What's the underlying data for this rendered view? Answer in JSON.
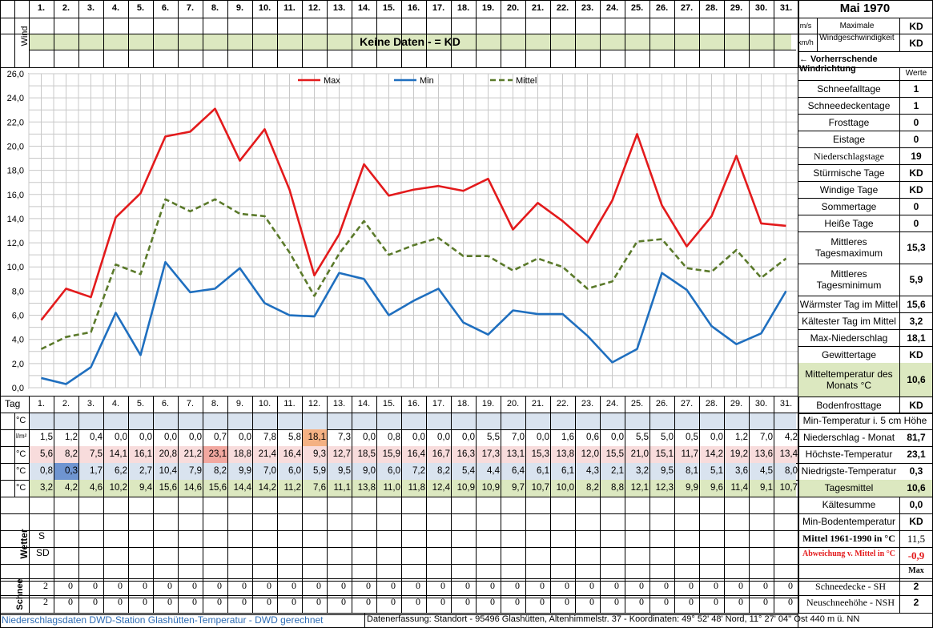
{
  "title": "Mai 1970",
  "days": [
    "1.",
    "2.",
    "3.",
    "4.",
    "5.",
    "6.",
    "7.",
    "8.",
    "9.",
    "10.",
    "11.",
    "12.",
    "13.",
    "14.",
    "15.",
    "16.",
    "17.",
    "18.",
    "19.",
    "20.",
    "21.",
    "22.",
    "23.",
    "24.",
    "25.",
    "26.",
    "27.",
    "28.",
    "29.",
    "30.",
    "31."
  ],
  "wind": {
    "label": "Wind",
    "unit_ms": "m/s",
    "unit_kmh": "km/h",
    "max_label": "Maximale Windgeschwindigkeit",
    "max_ms": "KD",
    "max_kmh": "KD",
    "no_data_banner": "Keine Daten -  = KD",
    "direction_label": "← Vorherrschende Windrichtung"
  },
  "werte_label": "Werte",
  "stats": [
    {
      "label": "Schneefalltage",
      "value": "1"
    },
    {
      "label": "Schneedeckentage",
      "value": "1"
    },
    {
      "label": "Frosttage",
      "value": "0"
    },
    {
      "label": "Eistage",
      "value": "0"
    },
    {
      "label": "Niederschlagstage",
      "value": "19"
    },
    {
      "label": "Stürmische Tage",
      "value": "KD"
    },
    {
      "label": "Windige Tage",
      "value": "KD"
    },
    {
      "label": "Sommertage",
      "value": "0"
    },
    {
      "label": "Heiße Tage",
      "value": "0"
    },
    {
      "label": "Mittleres Tagesmaximum",
      "value": "15,3"
    },
    {
      "label": "Mittleres Tagesminimum",
      "value": "5,9"
    },
    {
      "label": "Wärmster Tag im Mittel",
      "value": "15,6"
    },
    {
      "label": "Kältester Tag im Mittel",
      "value": "3,2"
    },
    {
      "label": "Max-Niederschlag",
      "value": "18,1"
    },
    {
      "label": "Gewittertage",
      "value": "KD"
    },
    {
      "label": "Mitteltemperatur des Monats °C",
      "value": "10,6"
    },
    {
      "label": "Bodenfrosttage",
      "value": "KD"
    }
  ],
  "table": {
    "tag_label": "Tag",
    "unit_c": "°C",
    "unit_lm2": "l/m²",
    "rows": [
      {
        "label": "Min-Temperatur i. 5 cm Höhe",
        "summary": "",
        "values": [
          "",
          "",
          "",
          "",
          "",
          "",
          "",
          "",
          "",
          "",
          "",
          "",
          "",
          "",
          "",
          "",
          "",
          "",
          "",
          "",
          "",
          "",
          "",
          "",
          "",
          "",
          "",
          "",
          "",
          "",
          ""
        ]
      },
      {
        "label": "Niederschlag - Monat",
        "summary": "81,7",
        "values": [
          "1,5",
          "1,2",
          "0,4",
          "0,0",
          "0,0",
          "0,0",
          "0,0",
          "0,7",
          "0,0",
          "7,8",
          "5,8",
          "18,1",
          "7,3",
          "0,0",
          "0,8",
          "0,0",
          "0,0",
          "0,0",
          "5,5",
          "7,0",
          "0,0",
          "1,6",
          "0,6",
          "0,0",
          "5,5",
          "5,0",
          "0,5",
          "0,0",
          "1,2",
          "7,0",
          "4,2"
        ]
      },
      {
        "label": "Höchste-Temperatur",
        "summary": "23,1",
        "values": [
          "5,6",
          "8,2",
          "7,5",
          "14,1",
          "16,1",
          "20,8",
          "21,2",
          "23,1",
          "18,8",
          "21,4",
          "16,4",
          "9,3",
          "12,7",
          "18,5",
          "15,9",
          "16,4",
          "16,7",
          "16,3",
          "17,3",
          "13,1",
          "15,3",
          "13,8",
          "12,0",
          "15,5",
          "21,0",
          "15,1",
          "11,7",
          "14,2",
          "19,2",
          "13,6",
          "13,4"
        ]
      },
      {
        "label": "Niedrigste-Temperatur",
        "summary": "0,3",
        "values": [
          "0,8",
          "0,3",
          "1,7",
          "6,2",
          "2,7",
          "10,4",
          "7,9",
          "8,2",
          "9,9",
          "7,0",
          "6,0",
          "5,9",
          "9,5",
          "9,0",
          "6,0",
          "7,2",
          "8,2",
          "5,4",
          "4,4",
          "6,4",
          "6,1",
          "6,1",
          "4,3",
          "2,1",
          "3,2",
          "9,5",
          "8,1",
          "5,1",
          "3,6",
          "4,5",
          "8,0"
        ]
      },
      {
        "label": "Tagesmittel",
        "summary": "10,6",
        "values": [
          "3,2",
          "4,2",
          "4,6",
          "10,2",
          "9,4",
          "15,6",
          "14,6",
          "15,6",
          "14,4",
          "14,2",
          "11,2",
          "7,6",
          "11,1",
          "13,8",
          "11,0",
          "11,8",
          "12,4",
          "10,9",
          "10,9",
          "9,7",
          "10,7",
          "10,0",
          "8,2",
          "8,8",
          "12,1",
          "12,3",
          "9,9",
          "9,6",
          "11,4",
          "9,1",
          "10,7"
        ]
      }
    ]
  },
  "lower_stats": [
    {
      "label": "Kältesumme",
      "value": "0,0"
    },
    {
      "label": "Min-Bodentemperatur",
      "value": "KD"
    },
    {
      "label": "Mittel 1961-1990 in °C",
      "value": "11,5"
    },
    {
      "label": "Abweichung v. Mittel in °C",
      "value": "-0,9"
    },
    {
      "label": "",
      "value": "Max"
    }
  ],
  "wetter": {
    "label": "Wetter",
    "row1": "S",
    "row2": "SD"
  },
  "schnee": {
    "label": "Schnee",
    "sh_label": "Schneedecke -   SH",
    "sh_max": "2",
    "nsh_label": "Neuschneehöhe - NSH",
    "nsh_max": "2",
    "sh_values": [
      "2",
      "0",
      "0",
      "0",
      "0",
      "0",
      "0",
      "0",
      "0",
      "0",
      "0",
      "0",
      "0",
      "0",
      "0",
      "0",
      "0",
      "0",
      "0",
      "0",
      "0",
      "0",
      "0",
      "0",
      "0",
      "0",
      "0",
      "0",
      "0",
      "0",
      "0"
    ],
    "nsh_values": [
      "2",
      "0",
      "0",
      "0",
      "0",
      "0",
      "0",
      "0",
      "0",
      "0",
      "0",
      "0",
      "0",
      "0",
      "0",
      "0",
      "0",
      "0",
      "0",
      "0",
      "0",
      "0",
      "0",
      "0",
      "0",
      "0",
      "0",
      "0",
      "0",
      "0",
      "0"
    ]
  },
  "footer": {
    "left": "Niederschlagsdaten DWD-Station Glashütten-Temperatur -  DWD gerechnet",
    "right": "Datenerfassung: Standort -  95496  Glashütten, Altenhimmelstr. 37 - Koordinaten:  49° 52' 48' Nord,   11° 27' 04'' Ost   440 m ü. NN"
  },
  "colors": {
    "max": "#e31a1c",
    "min": "#1f6fbf",
    "mittel": "#5b7a2b",
    "band": "#dce8c0",
    "blueband": "#d9e3ef",
    "highmax": "#f4c7b4",
    "highmin": "#6f95d1",
    "highprec": "#f4b183"
  },
  "chart_data": {
    "type": "line",
    "categories": [
      "1.",
      "2.",
      "3.",
      "4.",
      "5.",
      "6.",
      "7.",
      "8.",
      "9.",
      "10.",
      "11.",
      "12.",
      "13.",
      "14.",
      "15.",
      "16.",
      "17.",
      "18.",
      "19.",
      "20.",
      "21.",
      "22.",
      "23.",
      "24.",
      "25.",
      "26.",
      "27.",
      "28.",
      "29.",
      "30.",
      "31."
    ],
    "ylim": [
      0,
      26
    ],
    "yticks": [
      "0,0",
      "2,0",
      "4,0",
      "6,0",
      "8,0",
      "10,0",
      "12,0",
      "14,0",
      "16,0",
      "18,0",
      "20,0",
      "22,0",
      "24,0",
      "26,0"
    ],
    "grid": true,
    "legend_position": "top",
    "series": [
      {
        "name": "Max",
        "color": "#e31a1c",
        "style": "solid",
        "values": [
          5.6,
          8.2,
          7.5,
          14.1,
          16.1,
          20.8,
          21.2,
          23.1,
          18.8,
          21.4,
          16.4,
          9.3,
          12.7,
          18.5,
          15.9,
          16.4,
          16.7,
          16.3,
          17.3,
          13.1,
          15.3,
          13.8,
          12.0,
          15.5,
          21.0,
          15.1,
          11.7,
          14.2,
          19.2,
          13.6,
          13.4
        ]
      },
      {
        "name": "Min",
        "color": "#1f6fbf",
        "style": "solid",
        "values": [
          0.8,
          0.3,
          1.7,
          6.2,
          2.7,
          10.4,
          7.9,
          8.2,
          9.9,
          7.0,
          6.0,
          5.9,
          9.5,
          9.0,
          6.0,
          7.2,
          8.2,
          5.4,
          4.4,
          6.4,
          6.1,
          6.1,
          4.3,
          2.1,
          3.2,
          9.5,
          8.1,
          5.1,
          3.6,
          4.5,
          8.0
        ]
      },
      {
        "name": "Mittel",
        "color": "#5b7a2b",
        "style": "dashed",
        "values": [
          3.2,
          4.2,
          4.6,
          10.2,
          9.4,
          15.6,
          14.6,
          15.6,
          14.4,
          14.2,
          11.2,
          7.6,
          11.1,
          13.8,
          11.0,
          11.8,
          12.4,
          10.9,
          10.9,
          9.7,
          10.7,
          10.0,
          8.2,
          8.8,
          12.1,
          12.3,
          9.9,
          9.6,
          11.4,
          9.1,
          10.7
        ]
      }
    ]
  }
}
